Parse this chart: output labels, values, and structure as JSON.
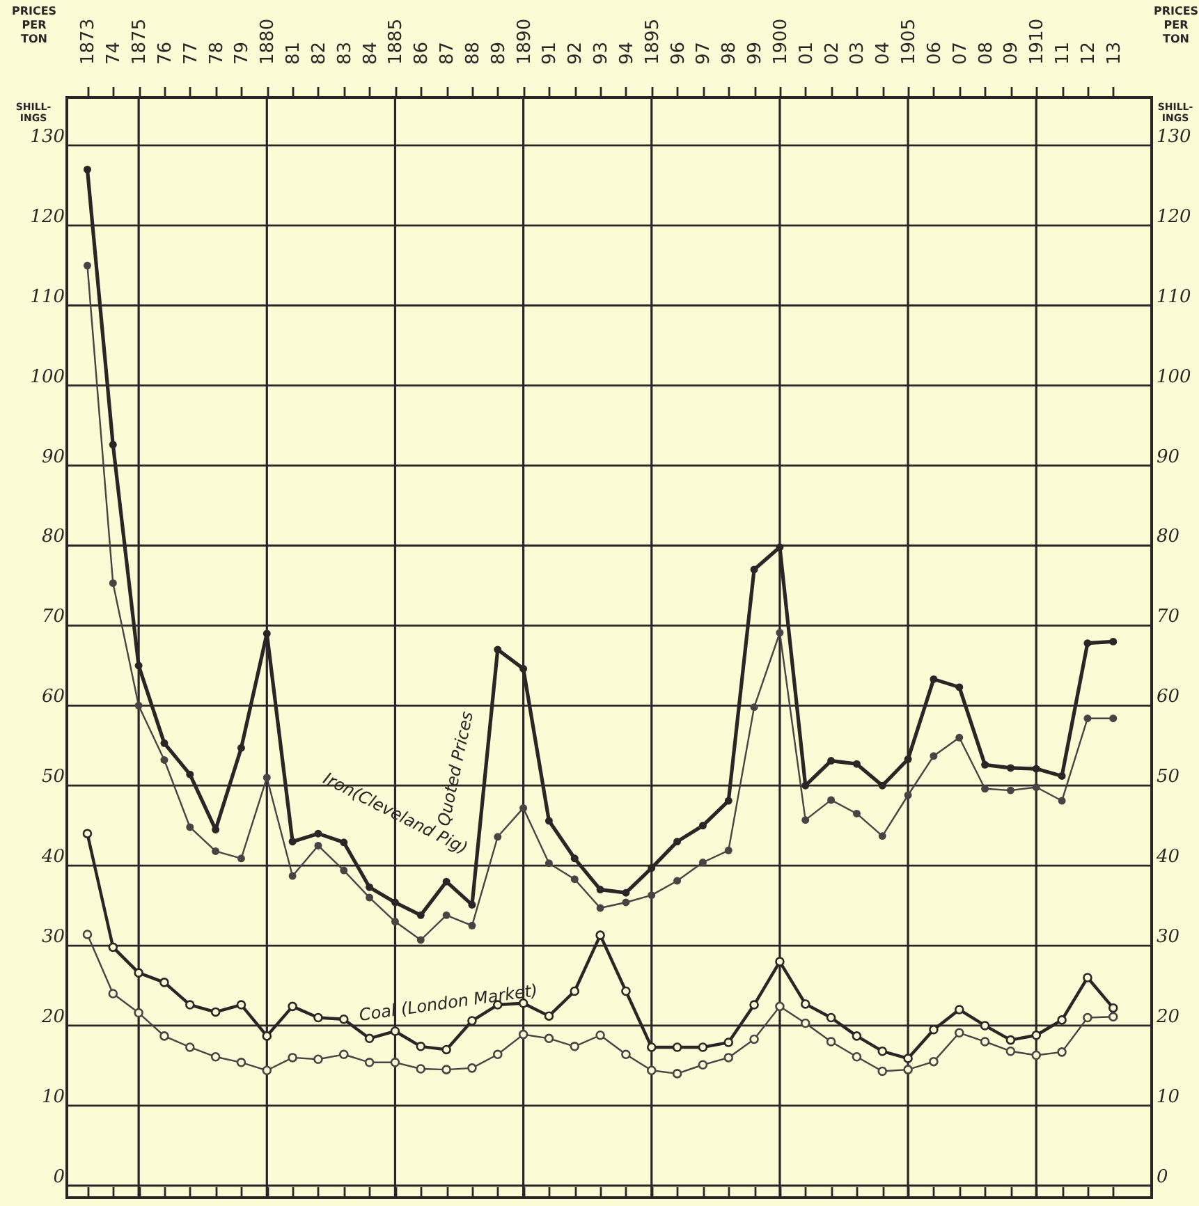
{
  "chart_data": {
    "type": "line",
    "ylabel": "PRICES PER TON",
    "y2label": "PRICES PER TON",
    "x": [
      1873,
      1874,
      1875,
      1876,
      1877,
      1878,
      1879,
      1880,
      1881,
      1882,
      1883,
      1884,
      1885,
      1886,
      1887,
      1888,
      1889,
      1890,
      1891,
      1892,
      1893,
      1894,
      1895,
      1896,
      1897,
      1898,
      1899,
      1900,
      1901,
      1902,
      1903,
      1904,
      1905,
      1906,
      1907,
      1908,
      1909,
      1910,
      1911,
      1912,
      1913
    ],
    "xlim": [
      1872.2,
      1914.5
    ],
    "xticks": [
      1873,
      {
        "value": 1874,
        "label": "74"
      },
      1875,
      {
        "value": 1876,
        "label": "76"
      },
      {
        "value": 1877,
        "label": "77"
      },
      {
        "value": 1878,
        "label": "78"
      },
      {
        "value": 1879,
        "label": "79"
      },
      1880,
      {
        "value": 1881,
        "label": "81"
      },
      {
        "value": 1882,
        "label": "82"
      },
      {
        "value": 1883,
        "label": "83"
      },
      {
        "value": 1884,
        "label": "84"
      },
      1885,
      {
        "value": 1886,
        "label": "86"
      },
      {
        "value": 1887,
        "label": "87"
      },
      {
        "value": 1888,
        "label": "88"
      },
      {
        "value": 1889,
        "label": "89"
      },
      1890,
      {
        "value": 1891,
        "label": "91"
      },
      {
        "value": 1892,
        "label": "92"
      },
      {
        "value": 1893,
        "label": "93"
      },
      {
        "value": 1894,
        "label": "94"
      },
      1895,
      {
        "value": 1896,
        "label": "96"
      },
      {
        "value": 1897,
        "label": "97"
      },
      {
        "value": 1898,
        "label": "98"
      },
      {
        "value": 1899,
        "label": "99"
      },
      1900,
      {
        "value": 1901,
        "label": "01"
      },
      {
        "value": 1902,
        "label": "02"
      },
      {
        "value": 1903,
        "label": "03"
      },
      {
        "value": 1904,
        "label": "04"
      },
      1905,
      {
        "value": 1906,
        "label": "06"
      },
      {
        "value": 1907,
        "label": "07"
      },
      {
        "value": 1908,
        "label": "08"
      },
      {
        "value": 1909,
        "label": "09"
      },
      1910,
      {
        "value": 1911,
        "label": "11"
      },
      {
        "value": 1912,
        "label": "12"
      },
      {
        "value": 1913,
        "label": "13"
      }
    ],
    "ylim": [
      -1.5,
      136
    ],
    "yticks": [
      0,
      10,
      20,
      30,
      40,
      50,
      60,
      70,
      80,
      90,
      100,
      110,
      120,
      130
    ],
    "y2lim": [
      -1.5,
      136
    ],
    "y2ticks": [
      0,
      10,
      20,
      30,
      40,
      50,
      60,
      70,
      80,
      90,
      100,
      110,
      120,
      130
    ],
    "grid": true,
    "marker": "circle",
    "line_style": "solid",
    "series": [
      {
        "color": "#2b2525",
        "values": [
          127,
          92.6,
          65,
          55.3,
          51.4,
          44.5,
          54.7,
          69,
          43,
          44,
          42.9,
          37.3,
          35.4,
          33.8,
          38,
          35.1,
          67,
          64.6,
          45.6,
          40.9,
          37,
          36.6,
          39.7,
          43,
          45,
          48.1,
          77,
          79.8,
          50,
          53.1,
          52.7,
          50,
          53.3,
          63.3,
          62.3,
          52.6,
          52.2,
          52.1,
          51.2,
          67.8,
          68
        ]
      },
      {
        "color": "#4a4343",
        "values": [
          115,
          75.3,
          60,
          53.2,
          44.8,
          41.8,
          40.9,
          51,
          38.7,
          42.5,
          39.4,
          36,
          33,
          30.7,
          33.8,
          32.5,
          43.6,
          47.2,
          40.3,
          38.3,
          34.7,
          35.4,
          36.3,
          38.1,
          40.4,
          41.9,
          59.8,
          69.1,
          45.7,
          48.2,
          46.5,
          43.7,
          48.8,
          53.7,
          56,
          49.6,
          49.4,
          49.8,
          48.1,
          58.4,
          58.4
        ]
      },
      {
        "color": "#2b2525",
        "values": [
          44,
          29.8,
          26.6,
          25.4,
          22.6,
          21.7,
          22.6,
          18.7,
          22.4,
          21,
          20.8,
          18.4,
          19.3,
          17.4,
          17,
          20.6,
          22.6,
          22.8,
          21.2,
          24.3,
          31.3,
          24.3,
          17.3,
          17.3,
          17.3,
          17.9,
          22.6,
          28,
          22.7,
          21,
          18.7,
          16.8,
          15.9,
          19.5,
          22,
          20,
          18.2,
          18.8,
          20.7,
          26,
          22.2
        ]
      },
      {
        "color": "#4a4343",
        "values": [
          31.4,
          24,
          21.6,
          18.7,
          17.3,
          16.1,
          15.4,
          14.4,
          16,
          15.8,
          16.4,
          15.4,
          15.4,
          14.6,
          14.5,
          14.7,
          16.4,
          18.9,
          18.4,
          17.4,
          18.8,
          16.4,
          14.4,
          14,
          15.1,
          16,
          18.3,
          22.4,
          20.3,
          18,
          16.1,
          14.3,
          14.5,
          15.5,
          19.1,
          18,
          16.8,
          16.3,
          16.7,
          21,
          21.1
        ]
      }
    ],
    "annotations": [
      "SHILL-INGS",
      "SHILL-INGS",
      "Iron(Cleveland Pig)",
      "Quoted Prices",
      "Coal (London Market)"
    ]
  }
}
